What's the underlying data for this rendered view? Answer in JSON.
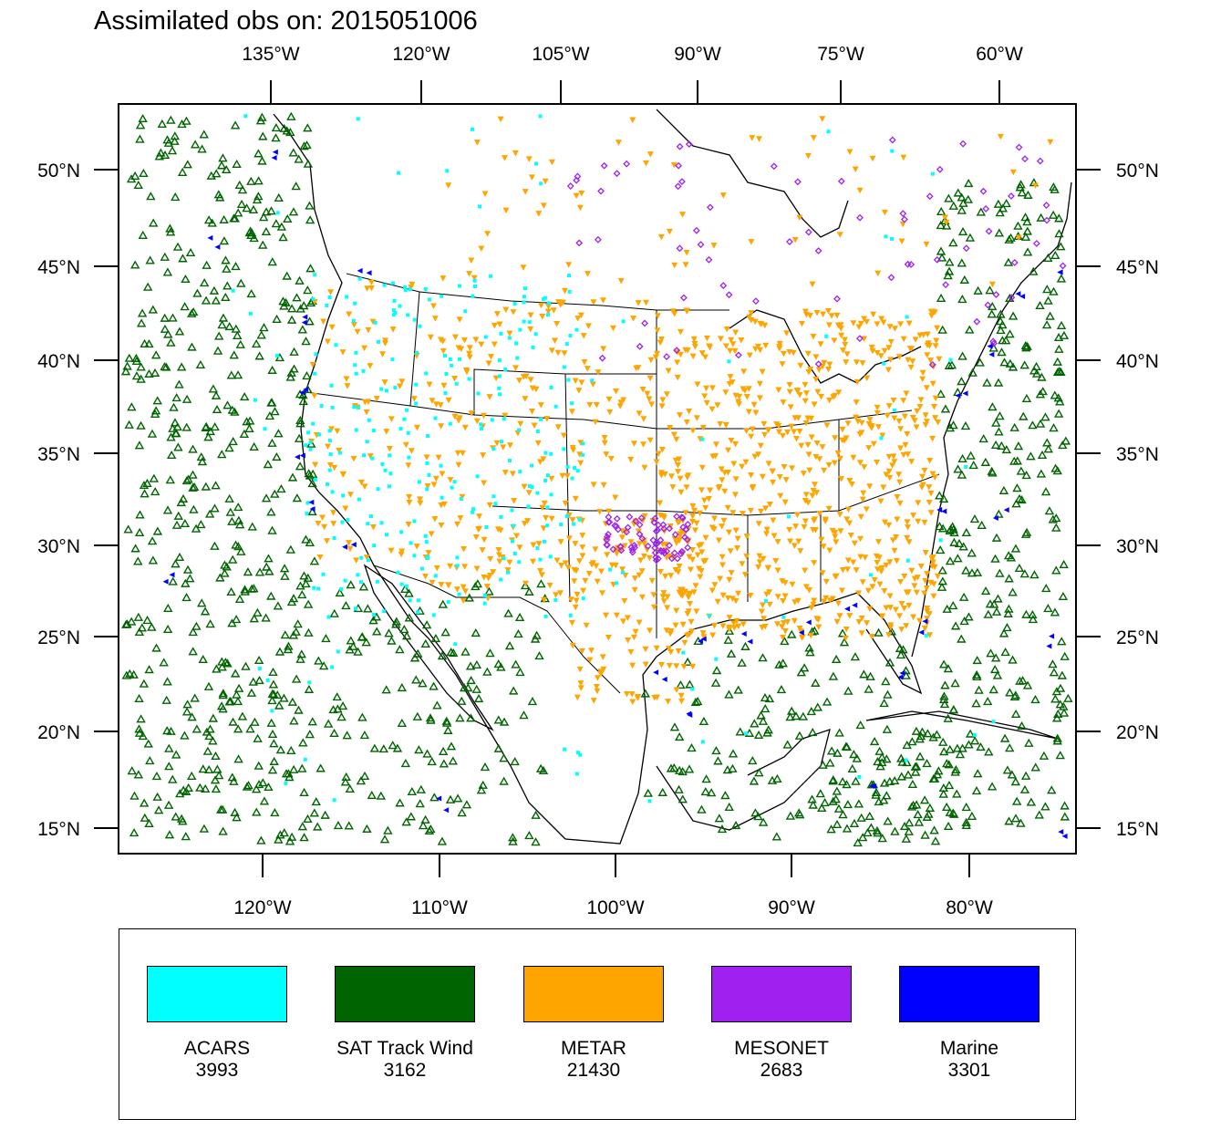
{
  "title": "Assimilated obs on: 2015051006",
  "top_lon_labels": [
    "135°W",
    "120°W",
    "105°W",
    "90°W",
    "75°W",
    "60°W"
  ],
  "bottom_lon_labels": [
    "120°W",
    "110°W",
    "100°W",
    "90°W",
    "80°W"
  ],
  "lat_labels": [
    "50°N",
    "45°N",
    "40°N",
    "35°N",
    "30°N",
    "25°N",
    "20°N",
    "15°N"
  ],
  "legend": [
    {
      "name": "ACARS",
      "count": "3993",
      "color": "#00ffff"
    },
    {
      "name": "SAT Track Wind",
      "count": "3162",
      "color": "#006400"
    },
    {
      "name": "METAR",
      "count": "21430",
      "color": "#ffa500"
    },
    {
      "name": "MESONET",
      "count": "2683",
      "color": "#a020f0"
    },
    {
      "name": "Marine",
      "count": "3301",
      "color": "#0000ff"
    }
  ]
}
